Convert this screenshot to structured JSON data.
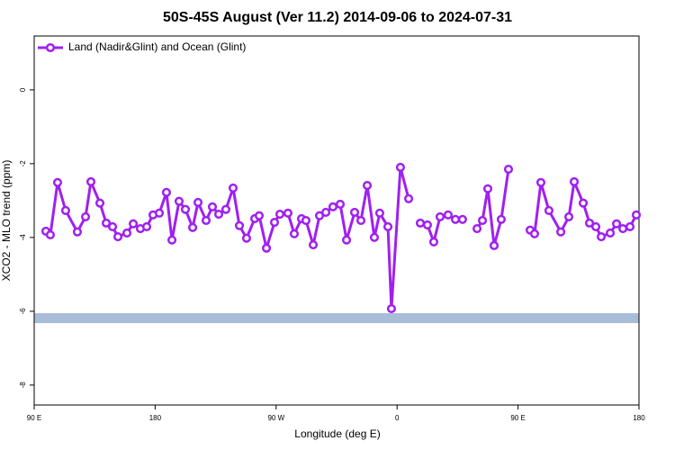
{
  "chart_data": {
    "type": "line",
    "title": "50S-45S August (Ver 11.2)   2014-09-06 to 2024-07-31",
    "xlabel": "Longitude (deg E)",
    "ylabel": "XCO2 - MLO trend (ppm)",
    "xlim": [
      90,
      540
    ],
    "ylim": [
      -8.54,
      1.46
    ],
    "xticks": [
      {
        "value": 90,
        "label": "90 E"
      },
      {
        "value": 180,
        "label": "180"
      },
      {
        "value": 270,
        "label": "90 W"
      },
      {
        "value": 360,
        "label": "0"
      },
      {
        "value": 450,
        "label": "90 E"
      },
      {
        "value": 540,
        "label": "180"
      }
    ],
    "yticks": [
      0,
      -2,
      -4,
      -6,
      -8
    ],
    "legend": "top-left",
    "x": [
      98.7,
      102,
      107.4,
      113.4,
      122.1,
      128.2,
      132.2,
      138.9,
      143.6,
      148.3,
      152.3,
      159,
      163.7,
      169,
      173.7,
      178.4,
      183.1,
      188.4,
      192.5,
      197.8,
      202.5,
      207.9,
      211.9,
      217.9,
      222.6,
      227.3,
      232.6,
      238,
      242.7,
      248,
      254.1,
      257.4,
      262.8,
      268.8,
      272.8,
      278.8,
      283.5,
      288.9,
      292.2,
      297.6,
      302.3,
      307,
      312.3,
      317.7,
      322.4,
      328.4,
      333.1,
      337.8,
      343.1,
      347.1,
      353.2,
      355.8,
      362.5,
      368.6,
      null,
      377.3,
      382.6,
      387.3,
      392,
      398,
      403.4,
      408.7,
      null,
      419.5,
      423.5,
      427.5,
      432.2,
      437.5,
      442.9,
      null,
      459,
      462.3,
      467,
      473,
      481.8,
      487.8,
      491.8,
      498.5,
      503.2,
      507.9,
      511.9,
      518.6,
      523.3,
      528,
      533.3,
      538
    ],
    "series": [
      {
        "name": "Land (Nadir&Glint) and Ocean (Glint)",
        "color": "#a020f0",
        "values": [
          -3.83,
          -3.93,
          -2.51,
          -3.27,
          -3.85,
          -3.44,
          -2.49,
          -3.07,
          -3.61,
          -3.71,
          -3.98,
          -3.88,
          -3.63,
          -3.76,
          -3.71,
          -3.39,
          -3.34,
          -2.78,
          -4.07,
          -3.02,
          -3.24,
          -3.73,
          -3.05,
          -3.54,
          -3.17,
          -3.37,
          -3.24,
          -2.66,
          -3.68,
          -4.02,
          -3.49,
          -3.41,
          -4.29,
          -3.59,
          -3.37,
          -3.34,
          -3.9,
          -3.49,
          -3.54,
          -4.2,
          -3.41,
          -3.32,
          -3.17,
          -3.1,
          -4.07,
          -3.32,
          -3.54,
          -2.59,
          -4,
          -3.34,
          -3.71,
          -5.93,
          -2.1,
          -2.95,
          null,
          -3.61,
          -3.66,
          -4.12,
          -3.44,
          -3.39,
          -3.51,
          -3.51,
          null,
          -3.76,
          -3.54,
          -2.68,
          -4.22,
          -3.51,
          -2.15,
          null,
          -3.8,
          -3.9,
          -2.51,
          -3.27,
          -3.85,
          -3.44,
          -2.49,
          -3.07,
          -3.61,
          -3.71,
          -3.98,
          -3.88,
          -3.63,
          -3.76,
          -3.71,
          -3.39
        ]
      }
    ]
  }
}
